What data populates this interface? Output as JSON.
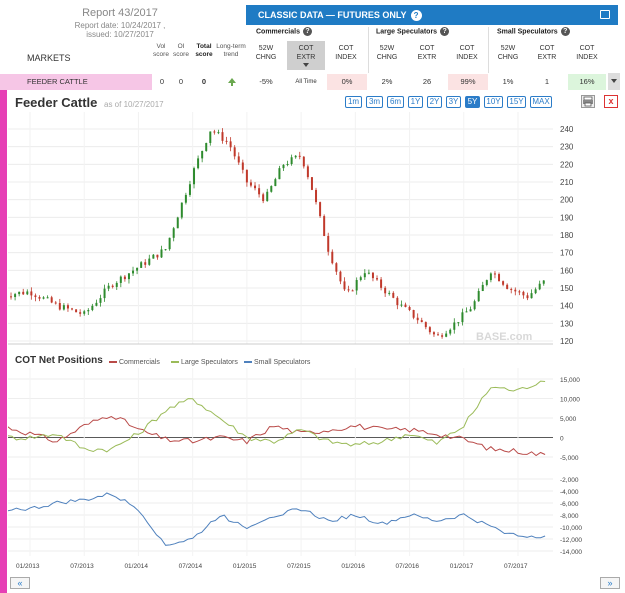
{
  "report": {
    "title": "Report 43/2017",
    "report_date": "Report date: 10/24/2017 ,",
    "issued": "issued: 10/27/2017"
  },
  "markets_header": {
    "markets": "MARKETS",
    "vol_score": "Vol\nscore",
    "oi_score": "OI\nscore",
    "total_score": "Total\nscore",
    "long_term_trend": "Long-term\ntrend"
  },
  "classic": {
    "title": "CLASSIC DATA — FUTURES ONLY",
    "help_icon": "question-icon",
    "print_icon": "printer-icon"
  },
  "groups": [
    {
      "label": "Commercials"
    },
    {
      "label": "Large Speculators"
    },
    {
      "label": "Small Speculators"
    }
  ],
  "columns": [
    "52W\nCHNG",
    "COT\nEXTR",
    "COT\nINDEX"
  ],
  "row": {
    "name": "FEEDER CATTLE",
    "vol": "0",
    "oi": "0",
    "total": "0",
    "trend": "up-arrow-icon",
    "comm_chng": "-5%",
    "comm_extr": "All Time",
    "comm_index": "0%",
    "large_chng": "2%",
    "large_extr": "26",
    "large_index": "99%",
    "small_chng": "1%",
    "small_extr": "1",
    "small_index": "16%",
    "colors": {
      "pink": "#f6c6e6",
      "light_red": "#fbe3e3",
      "light_green": "#dcf5dc"
    }
  },
  "chart": {
    "title": "Feeder Cattle",
    "as_of": "as of 10/27/2017",
    "ranges": [
      "1m",
      "3m",
      "6m",
      "1Y",
      "2Y",
      "3Y",
      "5Y",
      "10Y",
      "15Y",
      "MAX"
    ],
    "active_range": "5Y",
    "watermark": "BASE.com"
  },
  "cot": {
    "title": "COT Net Positions",
    "legend": [
      {
        "name": "Commercials",
        "color": "#b94a48"
      },
      {
        "name": "Large Speculators",
        "color": "#9bbb59"
      },
      {
        "name": "Small Speculators",
        "color": "#4f81bd"
      }
    ]
  },
  "chart_data": [
    {
      "type": "candlestick",
      "title": "Feeder Cattle",
      "x_ticks": [
        "01/2013",
        "07/2013",
        "01/2014",
        "07/2014",
        "01/2015",
        "07/2015",
        "01/2016",
        "07/2016",
        "01/2017",
        "07/2017"
      ],
      "y_ticks": [
        120,
        130,
        140,
        150,
        160,
        170,
        180,
        190,
        200,
        210,
        220,
        230,
        240
      ],
      "ylim": [
        115,
        245
      ],
      "x": [
        "10/2012",
        "01/2013",
        "04/2013",
        "07/2013",
        "10/2013",
        "01/2014",
        "04/2014",
        "07/2014",
        "09/2014",
        "11/2014",
        "01/2015",
        "03/2015",
        "05/2015",
        "07/2015",
        "08/2015",
        "10/2015",
        "12/2015",
        "02/2016",
        "04/2016",
        "06/2016",
        "08/2016",
        "10/2016",
        "12/2016",
        "02/2017",
        "04/2017",
        "06/2017",
        "08/2017",
        "10/2017"
      ],
      "values": [
        146,
        148,
        140,
        135,
        152,
        162,
        172,
        215,
        240,
        232,
        210,
        200,
        220,
        225,
        210,
        172,
        145,
        160,
        150,
        140,
        132,
        122,
        130,
        140,
        160,
        150,
        145,
        154
      ]
    },
    {
      "type": "line",
      "title": "COT Net Positions",
      "x_ticks": [
        "01/2013",
        "07/2013",
        "01/2014",
        "07/2014",
        "01/2015",
        "07/2015",
        "01/2016",
        "07/2016",
        "01/2017",
        "07/2017"
      ],
      "y_ticks_upper": [
        -5000,
        0,
        5000,
        10000,
        15000
      ],
      "y_ticks_lower": [
        -14000,
        -12000,
        -10000,
        -8000,
        -6000,
        -4000,
        -2000
      ],
      "x": [
        "10/2012",
        "01/2013",
        "04/2013",
        "07/2013",
        "10/2013",
        "01/2014",
        "04/2014",
        "07/2014",
        "10/2014",
        "01/2015",
        "04/2015",
        "07/2015",
        "10/2015",
        "01/2016",
        "04/2016",
        "07/2016",
        "10/2016",
        "01/2017",
        "04/2017",
        "07/2017",
        "10/2017"
      ],
      "series": [
        {
          "name": "Commercials",
          "values": [
            3000,
            1000,
            -1000,
            3000,
            6000,
            2000,
            -500,
            -1000,
            0,
            -1000,
            3000,
            1000,
            2000,
            3000,
            2000,
            2000,
            1000,
            -500,
            -3000,
            -3500,
            -4500
          ]
        },
        {
          "name": "Large Speculators",
          "values": [
            0,
            0,
            1000,
            -3000,
            -3000,
            1000,
            7000,
            10000,
            5000,
            0,
            -1000,
            2000,
            -1000,
            -2000,
            -1000,
            1000,
            -1500,
            3000,
            13000,
            12000,
            15000
          ]
        },
        {
          "name": "Small Speculators",
          "values": [
            -7000,
            -7000,
            -6000,
            -5500,
            -4500,
            -7000,
            -13000,
            -12000,
            -8000,
            -10000,
            -8000,
            -7000,
            -9000,
            -8000,
            -9500,
            -8000,
            -9000,
            -8000,
            -10000,
            -11500,
            -11500
          ]
        }
      ]
    }
  ]
}
